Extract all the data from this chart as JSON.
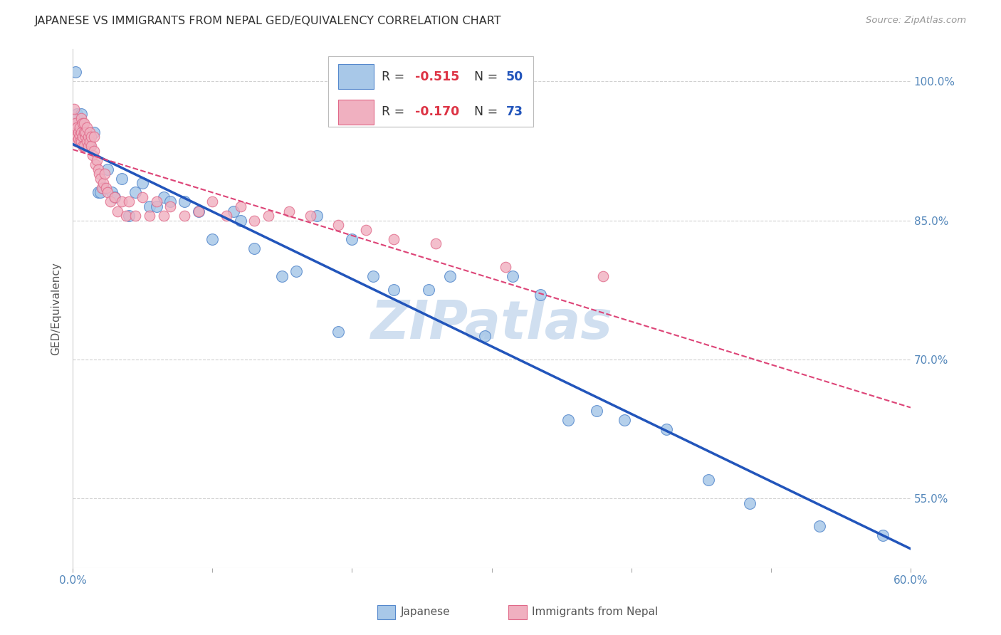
{
  "title": "JAPANESE VS IMMIGRANTS FROM NEPAL GED/EQUIVALENCY CORRELATION CHART",
  "source": "Source: ZipAtlas.com",
  "ylabel": "GED/Equivalency",
  "xmin": 0.0,
  "xmax": 0.6,
  "ymin": 0.475,
  "ymax": 1.035,
  "yticks": [
    0.55,
    0.7,
    0.85,
    1.0
  ],
  "ytick_labels": [
    "55.0%",
    "70.0%",
    "85.0%",
    "100.0%"
  ],
  "xticks": [
    0.0,
    0.1,
    0.2,
    0.3,
    0.4,
    0.5,
    0.6
  ],
  "xtick_labels": [
    "0.0%",
    "",
    "",
    "",
    "",
    "",
    "60.0%"
  ],
  "japanese_color": "#a8c8e8",
  "japanese_edge_color": "#5588cc",
  "nepal_color": "#f0b0c0",
  "nepal_edge_color": "#e06888",
  "trend_japanese_color": "#2255bb",
  "trend_nepal_color": "#dd4477",
  "watermark": "ZIPatlas",
  "watermark_color": "#d0dff0",
  "japanese_x": [
    0.002,
    0.003,
    0.004,
    0.005,
    0.006,
    0.007,
    0.008,
    0.01,
    0.012,
    0.015,
    0.018,
    0.02,
    0.022,
    0.025,
    0.028,
    0.03,
    0.035,
    0.04,
    0.045,
    0.05,
    0.055,
    0.06,
    0.065,
    0.07,
    0.08,
    0.09,
    0.1,
    0.115,
    0.12,
    0.13,
    0.15,
    0.16,
    0.175,
    0.19,
    0.2,
    0.215,
    0.23,
    0.255,
    0.27,
    0.295,
    0.315,
    0.335,
    0.355,
    0.375,
    0.395,
    0.425,
    0.455,
    0.485,
    0.535,
    0.58
  ],
  "japanese_y": [
    1.01,
    0.965,
    0.955,
    0.955,
    0.965,
    0.94,
    0.945,
    0.935,
    0.93,
    0.945,
    0.88,
    0.88,
    0.885,
    0.905,
    0.88,
    0.875,
    0.895,
    0.855,
    0.88,
    0.89,
    0.865,
    0.865,
    0.875,
    0.87,
    0.87,
    0.86,
    0.83,
    0.86,
    0.85,
    0.82,
    0.79,
    0.795,
    0.855,
    0.73,
    0.83,
    0.79,
    0.775,
    0.775,
    0.79,
    0.725,
    0.79,
    0.77,
    0.635,
    0.645,
    0.635,
    0.625,
    0.57,
    0.545,
    0.52,
    0.51
  ],
  "nepal_x": [
    0.001,
    0.001,
    0.001,
    0.002,
    0.002,
    0.002,
    0.003,
    0.003,
    0.003,
    0.004,
    0.004,
    0.005,
    0.005,
    0.005,
    0.006,
    0.006,
    0.006,
    0.007,
    0.007,
    0.007,
    0.008,
    0.008,
    0.008,
    0.009,
    0.009,
    0.01,
    0.01,
    0.011,
    0.011,
    0.012,
    0.012,
    0.013,
    0.013,
    0.014,
    0.015,
    0.015,
    0.016,
    0.017,
    0.018,
    0.019,
    0.02,
    0.021,
    0.022,
    0.023,
    0.024,
    0.025,
    0.027,
    0.03,
    0.032,
    0.035,
    0.038,
    0.04,
    0.045,
    0.05,
    0.055,
    0.06,
    0.065,
    0.07,
    0.08,
    0.09,
    0.1,
    0.11,
    0.12,
    0.13,
    0.14,
    0.155,
    0.17,
    0.19,
    0.21,
    0.23,
    0.26,
    0.31,
    0.38
  ],
  "nepal_y": [
    0.95,
    0.96,
    0.97,
    0.945,
    0.955,
    0.94,
    0.95,
    0.94,
    0.935,
    0.945,
    0.938,
    0.95,
    0.942,
    0.935,
    0.96,
    0.945,
    0.935,
    0.955,
    0.94,
    0.93,
    0.945,
    0.93,
    0.955,
    0.94,
    0.945,
    0.95,
    0.935,
    0.94,
    0.93,
    0.945,
    0.935,
    0.94,
    0.93,
    0.92,
    0.94,
    0.925,
    0.91,
    0.915,
    0.905,
    0.9,
    0.895,
    0.885,
    0.89,
    0.9,
    0.885,
    0.88,
    0.87,
    0.875,
    0.86,
    0.87,
    0.855,
    0.87,
    0.855,
    0.875,
    0.855,
    0.87,
    0.855,
    0.865,
    0.855,
    0.86,
    0.87,
    0.855,
    0.865,
    0.85,
    0.855,
    0.86,
    0.855,
    0.845,
    0.84,
    0.83,
    0.825,
    0.8,
    0.79
  ]
}
